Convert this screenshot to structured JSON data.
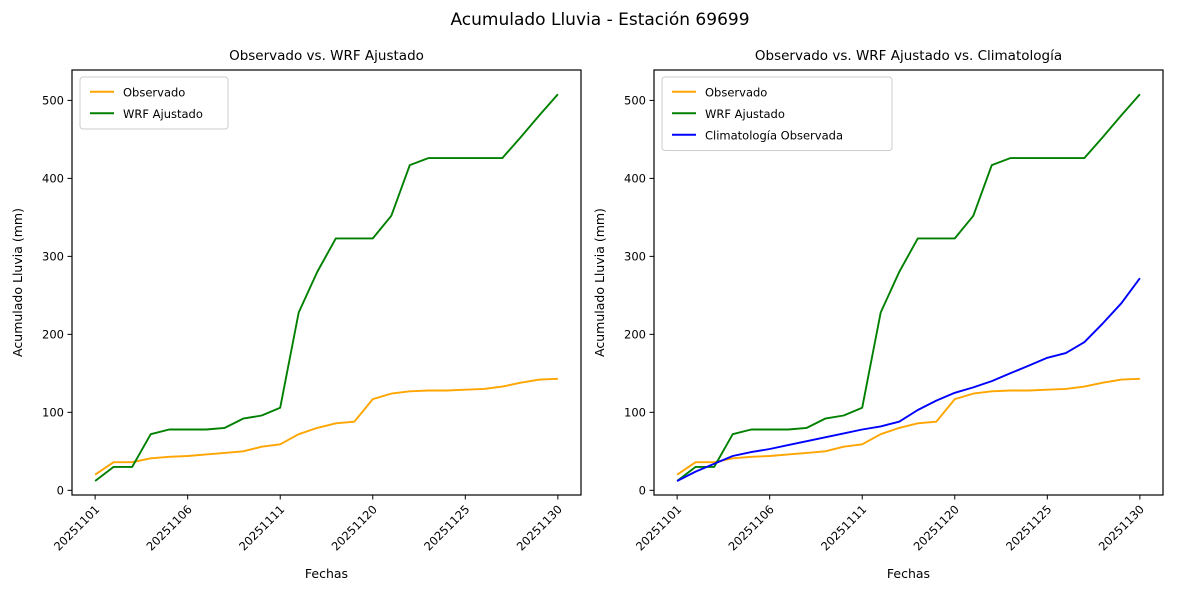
{
  "figure": {
    "suptitle": "Acumulado Lluvia - Estación 69699"
  },
  "axis_text": {
    "xlabel": "Fechas",
    "ylabel": "Acumulado Lluvia (mm)"
  },
  "colors": {
    "observado": "#FFA500",
    "wrf_ajustado": "#008000",
    "climatologia": "#0000FF",
    "axes_frame": "#000000",
    "legend_border": "#cccccc"
  },
  "chart_data": [
    {
      "type": "line",
      "title": "Observado vs. WRF Ajustado",
      "xlabel": "Fechas",
      "ylabel": "Acumulado Lluvia (mm)",
      "x_axis_type": "categorical-dates",
      "n_points": 26,
      "x_tick_positions": [
        0,
        5,
        10,
        15,
        20,
        25
      ],
      "x_tick_labels": [
        "20251101",
        "20251106",
        "20251111",
        "20251120",
        "20251125",
        "20251130"
      ],
      "x_tick_rotation": 45,
      "y_ticks": [
        0,
        100,
        200,
        300,
        400,
        500
      ],
      "ylim": [
        -6,
        539
      ],
      "xlim": [
        -1.25,
        26.25
      ],
      "grid": false,
      "legend_position": "upper-left",
      "series": [
        {
          "name": "Observado",
          "color": "#FFA500",
          "values": [
            20,
            36,
            36,
            41,
            43,
            44,
            46,
            48,
            50,
            56,
            59,
            72,
            80,
            86,
            88,
            117,
            124,
            127,
            128,
            128,
            129,
            130,
            133,
            138,
            142,
            143
          ]
        },
        {
          "name": "WRF Ajustado",
          "color": "#008000",
          "values": [
            12,
            30,
            30,
            72,
            78,
            78,
            78,
            80,
            92,
            96,
            106,
            228,
            280,
            323,
            323,
            323,
            352,
            417,
            426,
            426,
            426,
            426,
            426,
            453,
            481,
            508
          ]
        }
      ]
    },
    {
      "type": "line",
      "title": "Observado vs. WRF Ajustado vs. Climatología",
      "xlabel": "Fechas",
      "ylabel": "Acumulado Lluvia (mm)",
      "x_axis_type": "categorical-dates",
      "n_points": 26,
      "x_tick_positions": [
        0,
        5,
        10,
        15,
        20,
        25
      ],
      "x_tick_labels": [
        "20251101",
        "20251106",
        "20251111",
        "20251120",
        "20251125",
        "20251130"
      ],
      "x_tick_rotation": 45,
      "y_ticks": [
        0,
        100,
        200,
        300,
        400,
        500
      ],
      "ylim": [
        -6,
        539
      ],
      "xlim": [
        -1.25,
        26.25
      ],
      "grid": false,
      "legend_position": "upper-left",
      "series": [
        {
          "name": "Observado",
          "color": "#FFA500",
          "values": [
            20,
            36,
            36,
            41,
            43,
            44,
            46,
            48,
            50,
            56,
            59,
            72,
            80,
            86,
            88,
            117,
            124,
            127,
            128,
            128,
            129,
            130,
            133,
            138,
            142,
            143
          ]
        },
        {
          "name": "WRF Ajustado",
          "color": "#008000",
          "values": [
            12,
            30,
            30,
            72,
            78,
            78,
            78,
            80,
            92,
            96,
            106,
            228,
            280,
            323,
            323,
            323,
            352,
            417,
            426,
            426,
            426,
            426,
            426,
            453,
            481,
            508
          ]
        },
        {
          "name": "Climatología Observada",
          "color": "#0000FF",
          "values": [
            12,
            24,
            34,
            44,
            49,
            53,
            58,
            63,
            68,
            73,
            78,
            82,
            88,
            103,
            115,
            125,
            132,
            140,
            150,
            160,
            170,
            176,
            190,
            214,
            240,
            272
          ]
        }
      ]
    }
  ]
}
